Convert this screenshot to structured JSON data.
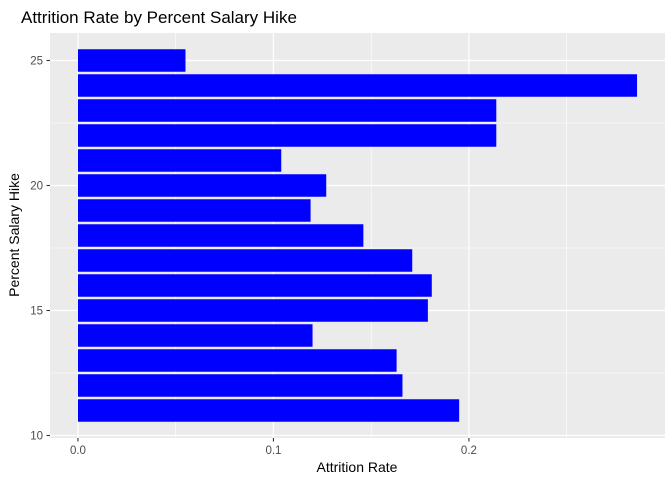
{
  "chart_data": {
    "type": "bar",
    "orientation": "horizontal",
    "title": "Attrition Rate by Percent Salary Hike",
    "xlabel": "Attrition Rate",
    "ylabel": "Percent Salary Hike",
    "categories": [
      11,
      12,
      13,
      14,
      15,
      16,
      17,
      18,
      19,
      20,
      21,
      22,
      23,
      24,
      25
    ],
    "values": [
      0.195,
      0.166,
      0.163,
      0.12,
      0.179,
      0.181,
      0.171,
      0.146,
      0.119,
      0.127,
      0.104,
      0.214,
      0.214,
      0.286,
      0.055
    ],
    "xlim": [
      -0.0143,
      0.3003
    ],
    "ylim": [
      9.9,
      26.1
    ],
    "x_ticks": [
      0.0,
      0.1,
      0.2
    ],
    "x_tick_labels": [
      "0.0",
      "0.1",
      "0.2"
    ],
    "y_ticks": [
      10,
      15,
      20,
      25
    ],
    "y_tick_labels": [
      "10",
      "15",
      "20",
      "25"
    ],
    "bar_color": "#0000ff",
    "panel_background": "#ebebeb",
    "grid_color": "#ffffff",
    "grid": true,
    "legend": "none"
  }
}
